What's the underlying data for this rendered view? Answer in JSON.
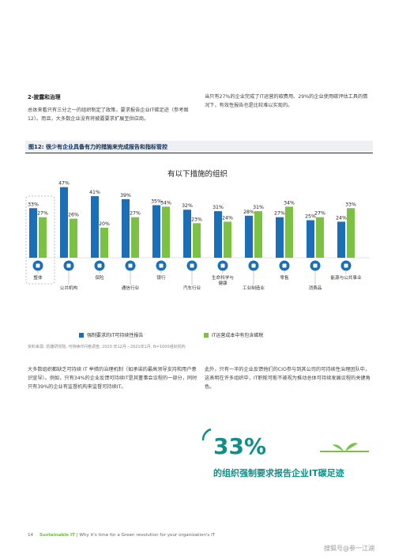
{
  "left_section": {
    "heading": "2-披露和治理",
    "para": "总体来看只有三分之一的组织制定了政策，要求报告企业IT碳足迹（参考图12）。而且，大多数企业没有将披露要求扩展至供应商。"
  },
  "right_top_para": "当只有27%的企业完成了IT运营的碳费用、29%的企业使用碳评估工具的情况下，有效性报告也是比较难以实现的。",
  "figure": {
    "title": "图12: 很少有企业具备有力的措施来完成报告和指标管控",
    "source": "资料来源: 凯捷研究院, 可持续IT问卷调查, 2020 年12月－2021年1月, N=1000组织机构"
  },
  "chart_data": {
    "type": "bar",
    "title": "有以下措施的组织",
    "categories": [
      "整体",
      "公共机构",
      "保险",
      "通信行业",
      "银行",
      "汽车行业",
      "生命科学与健康",
      "工业制造业",
      "零售",
      "消费品",
      "能源与公共事业"
    ],
    "series": [
      {
        "name": "强制要求的IT可持续性报告",
        "values": [
          33,
          47,
          41,
          39,
          35,
          32,
          31,
          28,
          27,
          25,
          24
        ],
        "color": "#1b6fb8"
      },
      {
        "name": "IT运营成本中有包含碳税",
        "values": [
          27,
          26,
          20,
          27,
          34,
          23,
          24,
          31,
          34,
          27,
          33
        ],
        "color": "#7cc242"
      }
    ],
    "value_labels": [
      [
        "33%",
        "47%",
        "41%",
        "39%",
        "35%",
        "32%",
        "31%",
        "28%",
        "27%",
        "25%",
        "24%"
      ],
      [
        "27%",
        "26%",
        "20%",
        "27%",
        "34%",
        "23%",
        "24%",
        "31%",
        "34%",
        "27%",
        "33%"
      ]
    ],
    "icon_names": [
      "globe-icon",
      "building-icon",
      "umbrella-icon",
      "wifi-icon",
      "bank-icon",
      "car-icon",
      "pill-icon",
      "factory-icon",
      "cart-icon",
      "bag-icon",
      "energy-icon"
    ],
    "ylim": [
      0,
      50
    ],
    "legend_position": "bottom"
  },
  "bottom_left_para": "大多数组织都缺乏可持续 IT 举措的治理机制（如承诺的最高领导支持和用户意识宣导）。例如，只有34%的企业反馈可持续IT是其董事会议程的一部分，同时只有39%的企业有监督机构来监督可持续IT。",
  "bottom_right_para": "此外，只有一半的企业反馈他们的CIO参与到其公司的可持续性治理团队中，这表明在许多组织中，IT职能可能不被视为推动总体可持续发展议程的关键角色。",
  "callout": {
    "number": "33%",
    "caption": "的组织强制要求报告企业IT碳足迹"
  },
  "footer": {
    "page": "14",
    "brand": "Sustainable IT",
    "subtitle": "| Why it's time for a Green revolution for your organization's IT"
  },
  "watermark": "搜狐号@参一江湖",
  "colors": {
    "blue": "#1b6fb8",
    "green": "#7cc242",
    "navy": "#0b2d57",
    "teal": "#0f8f88"
  }
}
